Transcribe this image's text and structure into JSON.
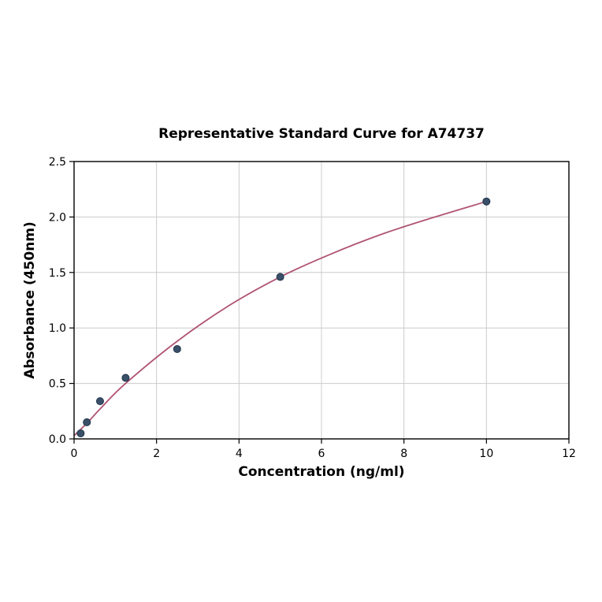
{
  "chart_data": {
    "type": "scatter",
    "title": "Representative Standard Curve for A74737",
    "xlabel": "Concentration (ng/ml)",
    "ylabel": "Absorbance (450nm)",
    "xlim": [
      0,
      12
    ],
    "ylim": [
      0,
      2.5
    ],
    "grid": true,
    "legend": "none",
    "xticks": [
      {
        "v": 0,
        "label": "0"
      },
      {
        "v": 2,
        "label": "2"
      },
      {
        "v": 4,
        "label": "4"
      },
      {
        "v": 6,
        "label": "6"
      },
      {
        "v": 8,
        "label": "8"
      },
      {
        "v": 10,
        "label": "10"
      },
      {
        "v": 12,
        "label": "12"
      }
    ],
    "yticks": [
      {
        "v": 0.0,
        "label": "0.0"
      },
      {
        "v": 0.5,
        "label": "0.5"
      },
      {
        "v": 1.0,
        "label": "1.0"
      },
      {
        "v": 1.5,
        "label": "1.5"
      },
      {
        "v": 2.0,
        "label": "2.0"
      },
      {
        "v": 2.5,
        "label": "2.5"
      }
    ],
    "points": [
      {
        "x": 0.16,
        "y": 0.05
      },
      {
        "x": 0.31,
        "y": 0.15
      },
      {
        "x": 0.63,
        "y": 0.34
      },
      {
        "x": 1.25,
        "y": 0.55
      },
      {
        "x": 2.5,
        "y": 0.81
      },
      {
        "x": 5.0,
        "y": 1.46
      },
      {
        "x": 10.0,
        "y": 2.14
      }
    ],
    "fit_curve": [
      [
        0,
        0.03
      ],
      [
        0.31,
        0.14
      ],
      [
        0.63,
        0.27
      ],
      [
        1.25,
        0.5
      ],
      [
        2.5,
        0.88
      ],
      [
        3.75,
        1.2
      ],
      [
        5.0,
        1.46
      ],
      [
        6.25,
        1.67
      ],
      [
        7.5,
        1.85
      ],
      [
        8.75,
        2.0
      ],
      [
        10.0,
        2.14
      ]
    ],
    "point_color": "#3a5068",
    "point_edge_color": "#22344a",
    "curve_color": "#b05475",
    "grid_color": "#cccccc",
    "axis_color": "#000000",
    "tick_label_color": "#000000"
  }
}
